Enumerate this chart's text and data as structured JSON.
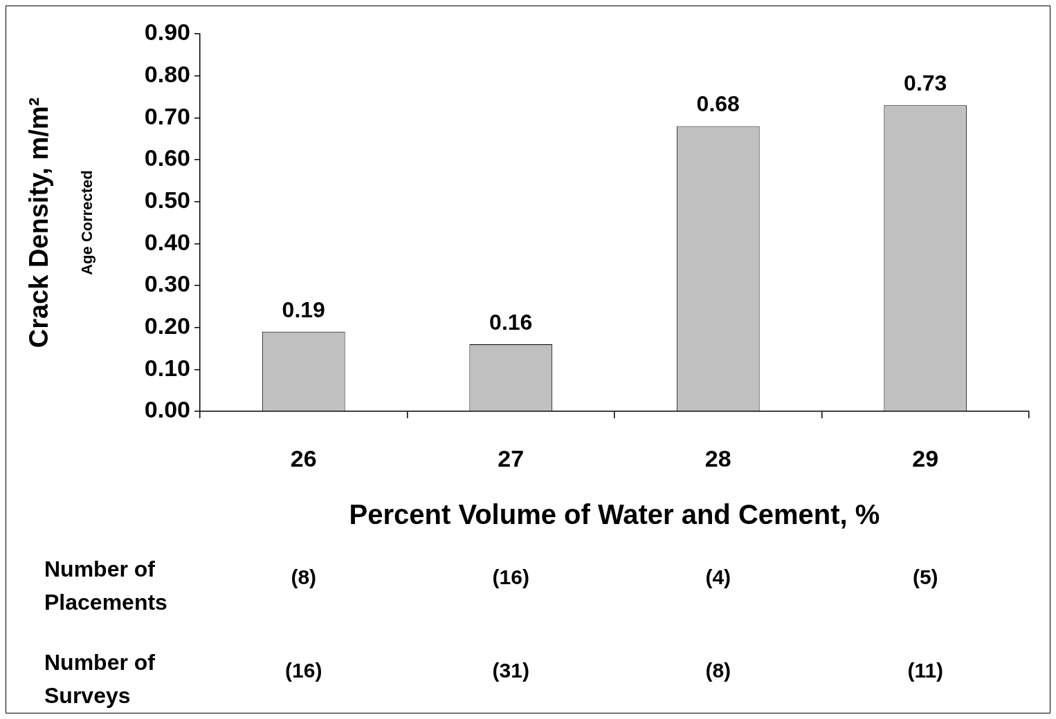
{
  "chart_data": {
    "type": "bar",
    "categories": [
      "26",
      "27",
      "28",
      "29"
    ],
    "values": [
      0.19,
      0.16,
      0.68,
      0.73
    ],
    "color": "#c0c0c0",
    "data_labels": true,
    "ylabel": "Crack Density, m/m²",
    "xlabel": "Percent Volume of Water and Cement, %",
    "ylim": [
      0,
      0.9
    ],
    "yticks": [
      {
        "value": 0,
        "label": "0.00"
      },
      {
        "value": 0.1,
        "label": "0.10"
      },
      {
        "value": 0.2,
        "label": "0.20"
      },
      {
        "value": 0.3,
        "label": "0.30"
      },
      {
        "value": 0.4,
        "label": "0.40"
      },
      {
        "value": 0.5,
        "label": "0.50"
      },
      {
        "value": 0.6,
        "label": "0.60"
      },
      {
        "value": 0.7,
        "label": "0.70"
      },
      {
        "value": 0.8,
        "label": "0.80"
      },
      {
        "value": 0.9,
        "label": "0.90"
      }
    ],
    "grid": false,
    "legend": false,
    "annotations": [
      "Age Corrected",
      "Number of Placements",
      "(8)",
      "(16)",
      "(4)",
      "(5)",
      "Number of Surveys",
      "(16)",
      "(31)",
      "(8)",
      "(11)"
    ]
  }
}
